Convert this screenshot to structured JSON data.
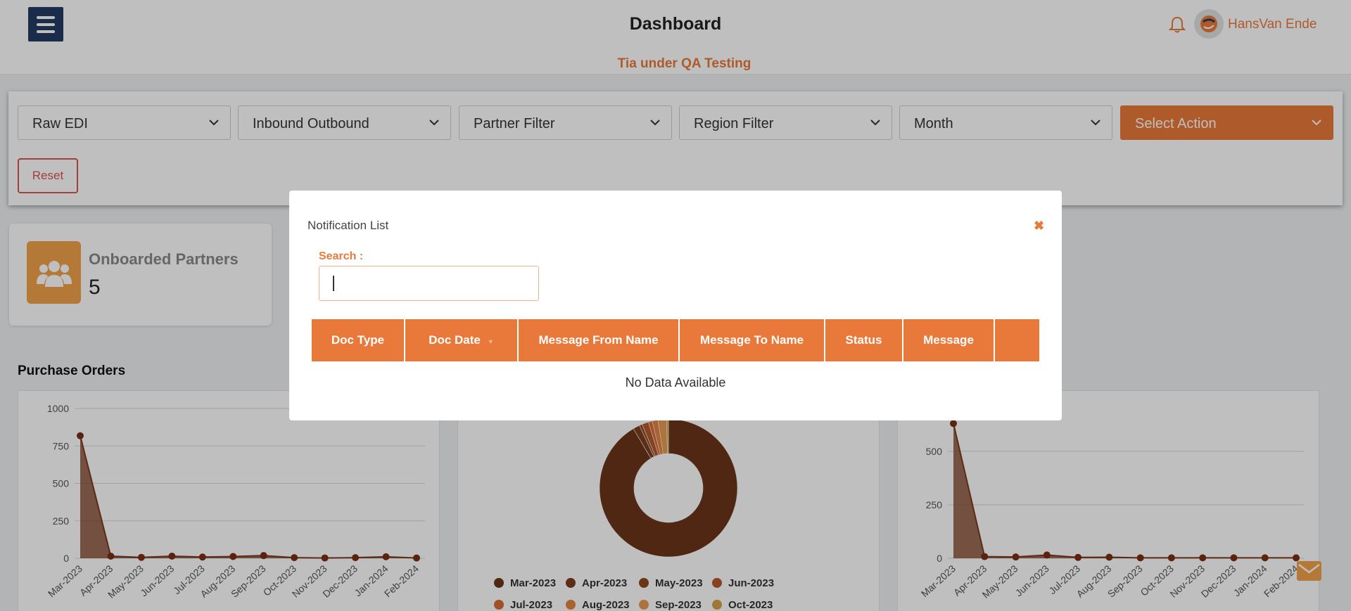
{
  "header": {
    "title": "Dashboard",
    "environment": "Tia under QA Testing",
    "user_name": "HansVan Ende"
  },
  "filters": {
    "items": [
      {
        "label": "Raw EDI"
      },
      {
        "label": "Inbound Outbound"
      },
      {
        "label": "Partner Filter"
      },
      {
        "label": "Region Filter"
      },
      {
        "label": "Month"
      },
      {
        "label": "Select Action"
      }
    ],
    "reset_label": "Reset"
  },
  "stats": {
    "onboarded_label": "Onboarded Partners",
    "onboarded_value": "5"
  },
  "purchase_orders": {
    "title": "Purchase Orders"
  },
  "modal": {
    "title": "Notification List",
    "close_icon": "close-icon",
    "search_label": "Search :",
    "search_value": "",
    "columns": [
      "Doc Type",
      "Doc Date",
      "Message From Name",
      "Message To Name",
      "Status",
      "Message",
      ""
    ],
    "empty_text": "No Data Available"
  },
  "colors": {
    "accent": "#e8793a",
    "nav": "#243b63",
    "series": "#7a3a1d"
  },
  "chart_data": [
    {
      "type": "area",
      "x": [
        "Mar-2023",
        "Apr-2023",
        "May-2023",
        "Jun-2023",
        "Jul-2023",
        "Aug-2023",
        "Sep-2023",
        "Oct-2023",
        "Nov-2023",
        "Dec-2023",
        "Jan-2024",
        "Feb-2024"
      ],
      "values": [
        818,
        14,
        6,
        14,
        8,
        12,
        18,
        4,
        2,
        4,
        10,
        2
      ],
      "ylim": [
        0,
        1000
      ],
      "yticks": [
        0,
        250,
        500,
        750,
        1000
      ],
      "grid": true
    },
    {
      "type": "pie",
      "labels": [
        "Mar-2023",
        "Apr-2023",
        "May-2023",
        "Jun-2023",
        "Jul-2023",
        "Aug-2023",
        "Sep-2023",
        "Oct-2023"
      ],
      "values": [
        818,
        14,
        6,
        14,
        8,
        12,
        18,
        4
      ],
      "legend": "bottom"
    },
    {
      "type": "area",
      "x": [
        "Mar-2023",
        "Apr-2023",
        "May-2023",
        "Jun-2023",
        "Jul-2023",
        "Aug-2023",
        "Sep-2023",
        "Oct-2023",
        "Nov-2023",
        "Dec-2023",
        "Jan-2024",
        "Feb-2024"
      ],
      "values": [
        630,
        8,
        6,
        15,
        4,
        5,
        2,
        2,
        2,
        2,
        2,
        2
      ],
      "ylim": [
        0,
        700
      ],
      "yticks": [
        0,
        250,
        500
      ],
      "grid": true
    }
  ]
}
